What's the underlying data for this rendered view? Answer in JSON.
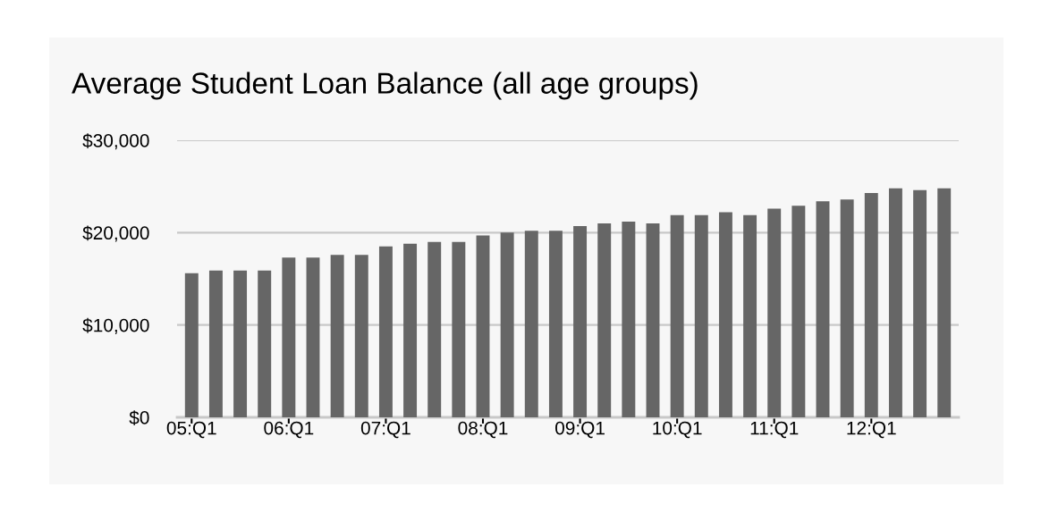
{
  "chart_data": {
    "type": "bar",
    "title": "Average Student Loan Balance (all age groups)",
    "categories": [
      "05:Q1",
      null,
      null,
      null,
      "06:Q1",
      null,
      null,
      null,
      "07:Q1",
      null,
      null,
      null,
      "08:Q1",
      null,
      null,
      null,
      "09:Q1",
      null,
      null,
      null,
      "10:Q1",
      null,
      null,
      null,
      "11:Q1",
      null,
      null,
      null,
      "12:Q1",
      null,
      null,
      null
    ],
    "values": [
      15600,
      15900,
      15900,
      15900,
      17300,
      17300,
      17600,
      17600,
      18500,
      18800,
      19000,
      19000,
      19700,
      20000,
      20200,
      20200,
      20700,
      21000,
      21200,
      21000,
      21900,
      21900,
      22200,
      21900,
      22600,
      22900,
      23400,
      23600,
      24300,
      24800,
      24600,
      24800
    ],
    "color": "#666666",
    "ylim": [
      0,
      30000
    ],
    "yticks": [
      {
        "value": 0,
        "label": "$0"
      },
      {
        "value": 10000,
        "label": "$10,000"
      },
      {
        "value": 20000,
        "label": "$20,000"
      },
      {
        "value": 30000,
        "label": "$30,000"
      }
    ],
    "grid": "y"
  }
}
